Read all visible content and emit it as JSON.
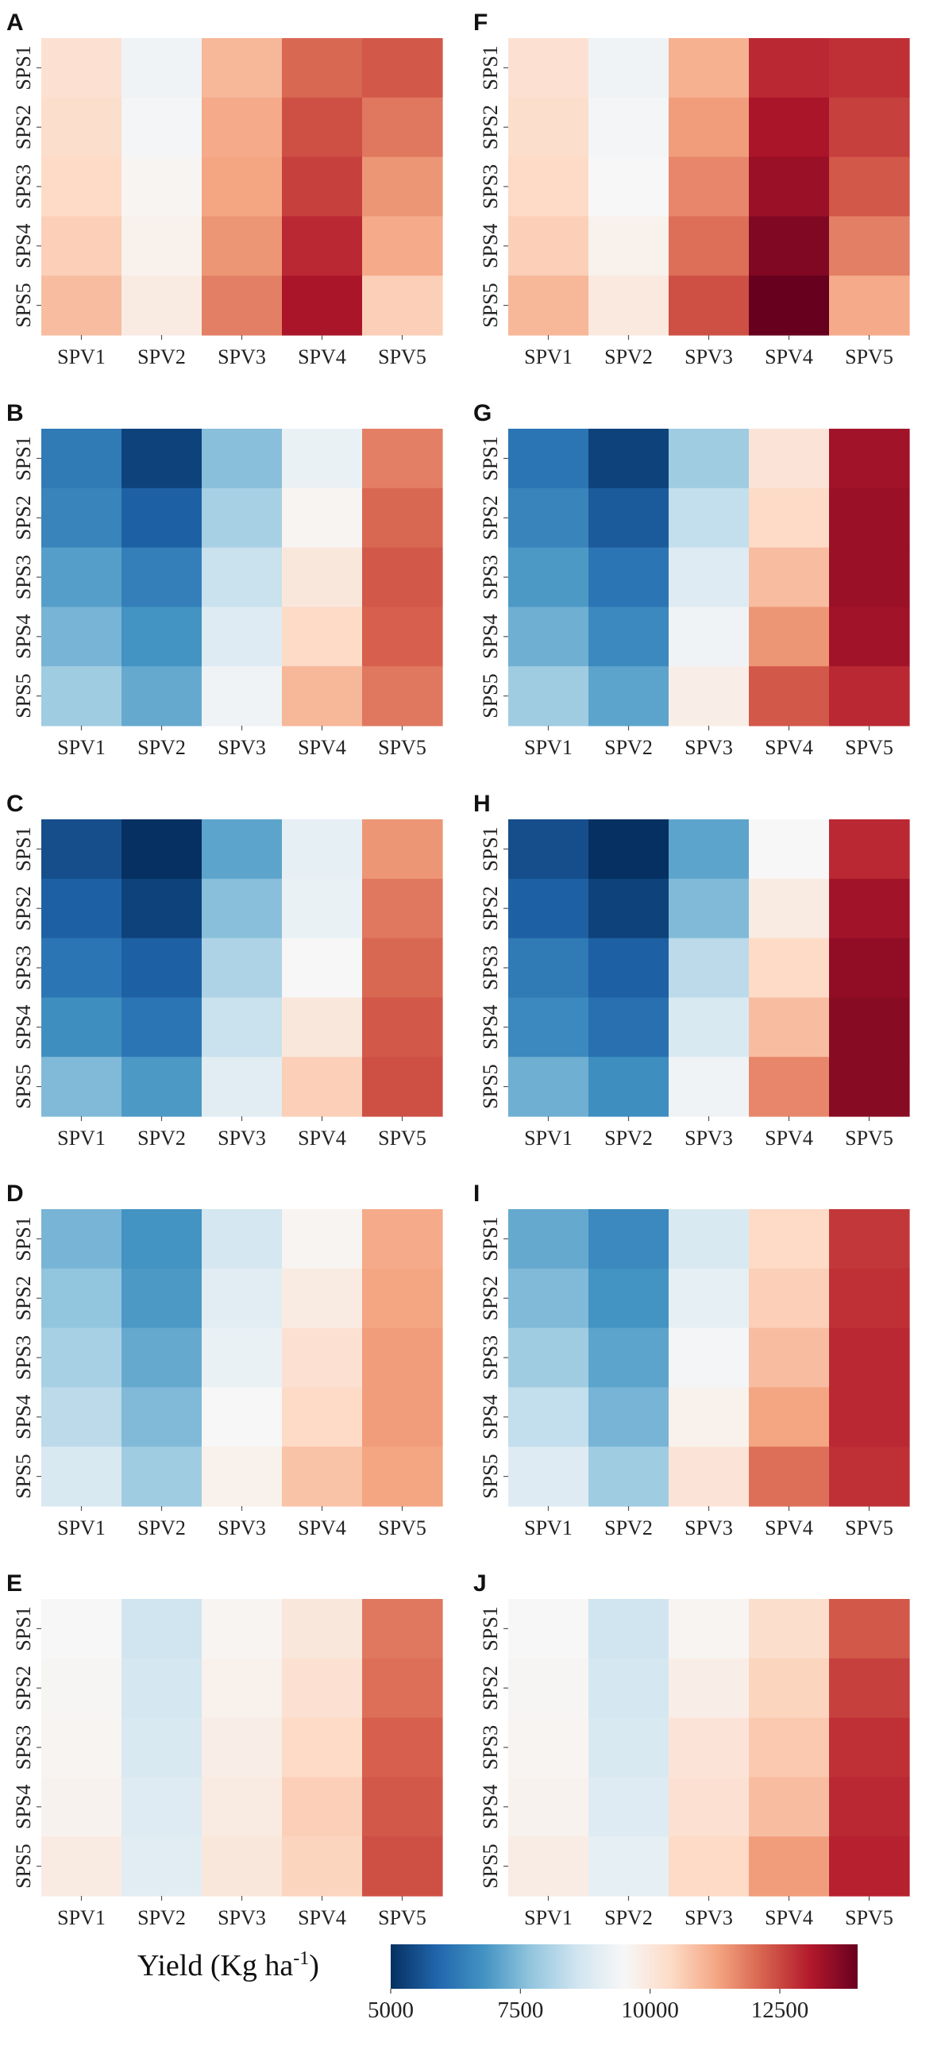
{
  "chart_data": [
    {
      "panel": "A",
      "type": "heatmap",
      "x": [
        "SPV1",
        "SPV2",
        "SPV3",
        "SPV4",
        "SPV5"
      ],
      "y": [
        "SPS1",
        "SPS2",
        "SPS3",
        "SPS4",
        "SPS5"
      ],
      "values": [
        [
          10200,
          9300,
          11000,
          12100,
          12300
        ],
        [
          10300,
          9400,
          11200,
          12400,
          11900
        ],
        [
          10400,
          9600,
          11300,
          12600,
          11500
        ],
        [
          10600,
          9700,
          11500,
          12900,
          11200
        ],
        [
          10900,
          9900,
          11800,
          13200,
          10600
        ]
      ]
    },
    {
      "panel": "B",
      "type": "heatmap",
      "x": [
        "SPV1",
        "SPV2",
        "SPV3",
        "SPV4",
        "SPV5"
      ],
      "y": [
        "SPS1",
        "SPS2",
        "SPS3",
        "SPS4",
        "SPS5"
      ],
      "values": [
        [
          6300,
          5300,
          7600,
          9200,
          11800
        ],
        [
          6500,
          5800,
          8000,
          9600,
          12100
        ],
        [
          7000,
          6400,
          8500,
          10000,
          12300
        ],
        [
          7400,
          6800,
          8900,
          10400,
          12200
        ],
        [
          7900,
          7200,
          9300,
          11000,
          11900
        ]
      ]
    },
    {
      "panel": "C",
      "type": "heatmap",
      "x": [
        "SPV1",
        "SPV2",
        "SPV3",
        "SPV4",
        "SPV5"
      ],
      "y": [
        "SPS1",
        "SPS2",
        "SPS3",
        "SPS4",
        "SPS5"
      ],
      "values": [
        [
          5500,
          5000,
          7100,
          9100,
          11500
        ],
        [
          5800,
          5300,
          7600,
          9200,
          11900
        ],
        [
          6200,
          5800,
          8100,
          9500,
          12100
        ],
        [
          6700,
          6200,
          8500,
          10000,
          12300
        ],
        [
          7500,
          6900,
          9000,
          10600,
          12400
        ]
      ]
    },
    {
      "panel": "D",
      "type": "heatmap",
      "x": [
        "SPV1",
        "SPV2",
        "SPV3",
        "SPV4",
        "SPV5"
      ],
      "y": [
        "SPS1",
        "SPS2",
        "SPS3",
        "SPS4",
        "SPS5"
      ],
      "values": [
        [
          7400,
          6800,
          8700,
          9600,
          11200
        ],
        [
          7700,
          6900,
          9000,
          9900,
          11300
        ],
        [
          8000,
          7200,
          9200,
          10200,
          11400
        ],
        [
          8300,
          7500,
          9500,
          10400,
          11400
        ],
        [
          8800,
          7900,
          9700,
          10800,
          11300
        ]
      ]
    },
    {
      "panel": "E",
      "type": "heatmap",
      "x": [
        "SPV1",
        "SPV2",
        "SPV3",
        "SPV4",
        "SPV5"
      ],
      "y": [
        "SPS1",
        "SPS2",
        "SPS3",
        "SPS4",
        "SPS5"
      ],
      "values": [
        [
          9500,
          8600,
          9600,
          10000,
          11900
        ],
        [
          9550,
          8700,
          9700,
          10200,
          12000
        ],
        [
          9600,
          8800,
          9800,
          10400,
          12200
        ],
        [
          9650,
          8900,
          9900,
          10600,
          12300
        ],
        [
          9900,
          9000,
          10000,
          10500,
          12400
        ]
      ]
    },
    {
      "panel": "F",
      "type": "heatmap",
      "x": [
        "SPV1",
        "SPV2",
        "SPV3",
        "SPV4",
        "SPV5"
      ],
      "y": [
        "SPS1",
        "SPS2",
        "SPS3",
        "SPS4",
        "SPS5"
      ],
      "values": [
        [
          10200,
          9300,
          11100,
          12900,
          12800
        ],
        [
          10300,
          9400,
          11400,
          13200,
          12600
        ],
        [
          10400,
          9500,
          11700,
          13400,
          12300
        ],
        [
          10600,
          9700,
          12000,
          13700,
          11800
        ],
        [
          11000,
          9950,
          12400,
          14000,
          11200
        ]
      ]
    },
    {
      "panel": "G",
      "type": "heatmap",
      "x": [
        "SPV1",
        "SPV2",
        "SPV3",
        "SPV4",
        "SPV5"
      ],
      "y": [
        "SPS1",
        "SPS2",
        "SPS3",
        "SPS4",
        "SPS5"
      ],
      "values": [
        [
          6200,
          5300,
          7900,
          10100,
          13300
        ],
        [
          6500,
          5700,
          8400,
          10400,
          13400
        ],
        [
          6900,
          6200,
          8900,
          10900,
          13400
        ],
        [
          7300,
          6600,
          9300,
          11500,
          13300
        ],
        [
          7900,
          7100,
          9800,
          12300,
          12900
        ]
      ]
    },
    {
      "panel": "H",
      "type": "heatmap",
      "x": [
        "SPV1",
        "SPV2",
        "SPV3",
        "SPV4",
        "SPV5"
      ],
      "y": [
        "SPS1",
        "SPS2",
        "SPS3",
        "SPS4",
        "SPS5"
      ],
      "values": [
        [
          5500,
          5000,
          7100,
          9500,
          12900
        ],
        [
          5800,
          5300,
          7500,
          9900,
          13300
        ],
        [
          6300,
          5800,
          8300,
          10400,
          13500
        ],
        [
          6600,
          6100,
          8800,
          10900,
          13600
        ],
        [
          7300,
          6700,
          9300,
          11700,
          13600
        ]
      ]
    },
    {
      "panel": "I",
      "type": "heatmap",
      "x": [
        "SPV1",
        "SPV2",
        "SPV3",
        "SPV4",
        "SPV5"
      ],
      "y": [
        "SPS1",
        "SPS2",
        "SPS3",
        "SPS4",
        "SPS5"
      ],
      "values": [
        [
          7200,
          6600,
          8800,
          10400,
          12700
        ],
        [
          7500,
          6800,
          9100,
          10600,
          12800
        ],
        [
          7900,
          7100,
          9400,
          10900,
          12900
        ],
        [
          8400,
          7400,
          9700,
          11300,
          12900
        ],
        [
          8900,
          7900,
          10100,
          12000,
          12800
        ]
      ]
    },
    {
      "panel": "J",
      "type": "heatmap",
      "x": [
        "SPV1",
        "SPV2",
        "SPV3",
        "SPV4",
        "SPV5"
      ],
      "y": [
        "SPS1",
        "SPS2",
        "SPS3",
        "SPS4",
        "SPS5"
      ],
      "values": [
        [
          9500,
          8600,
          9600,
          10300,
          12300
        ],
        [
          9550,
          8700,
          9800,
          10500,
          12600
        ],
        [
          9600,
          8800,
          10100,
          10700,
          12800
        ],
        [
          9650,
          8900,
          10200,
          10900,
          12900
        ],
        [
          9850,
          9100,
          10400,
          11400,
          13000
        ]
      ]
    }
  ],
  "colorbar": {
    "title": "Yield (Kg ha",
    "title_sup": "-1",
    "title_end": ")",
    "range": [
      5000,
      14000
    ],
    "ticks": [
      5000,
      7500,
      10000,
      12500
    ],
    "colors": [
      "#053061",
      "#2166ac",
      "#4393c3",
      "#92c5de",
      "#d1e5f0",
      "#f7f7f7",
      "#fddbc7",
      "#f4a582",
      "#d6604d",
      "#b2182b",
      "#67001f"
    ]
  }
}
